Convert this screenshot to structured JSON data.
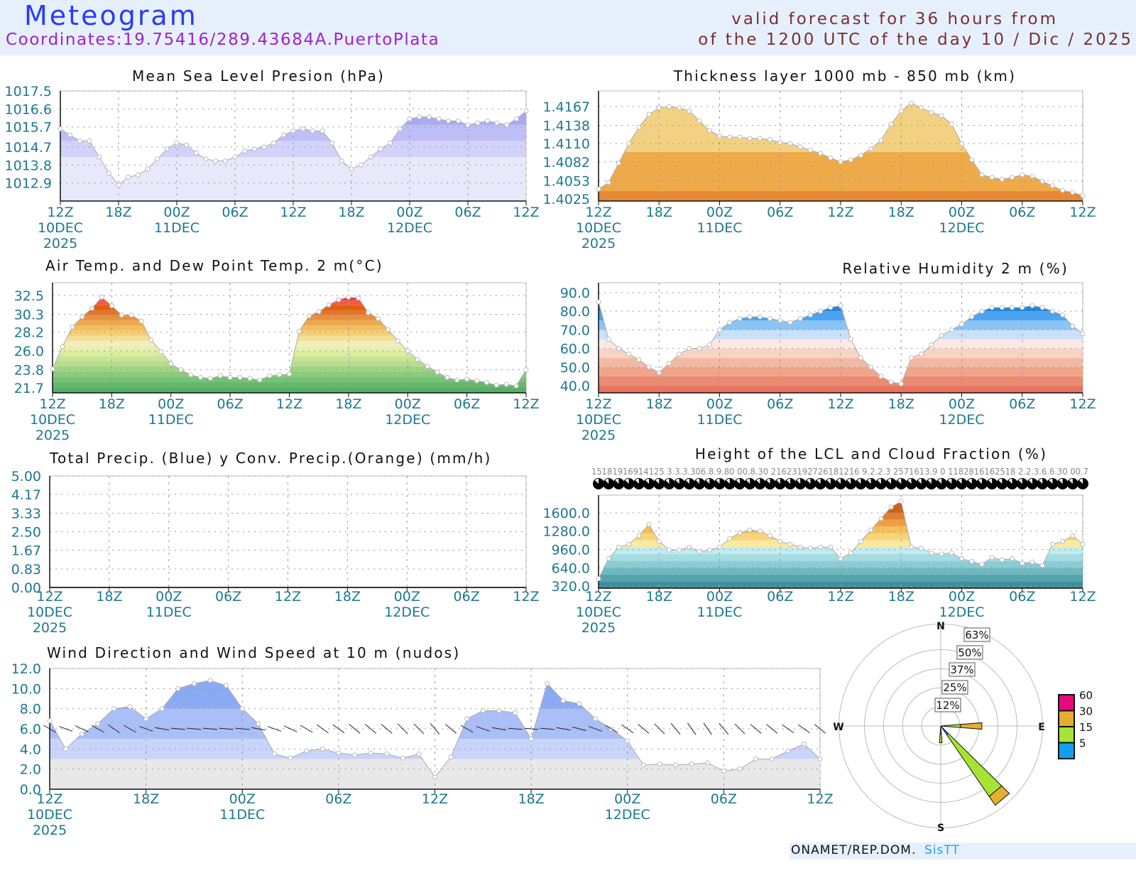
{
  "header": {
    "title": "Meteogram",
    "coordinates": "Coordinates:19.75416/289.43684A.PuertoPlata",
    "valid_line1": "valid forecast for 36 hours from",
    "valid_line2": "of the 1200 UTC of the day 10 / Dic / 2025"
  },
  "time_axis": {
    "hours": [
      "12Z",
      "18Z",
      "00Z",
      "06Z",
      "12Z",
      "18Z",
      "00Z",
      "06Z",
      "12Z"
    ],
    "dates": [
      "10DEC",
      "",
      "11DEC",
      "",
      "",
      "",
      "12DEC",
      "",
      ""
    ],
    "year": "2025"
  },
  "chart_data": [
    {
      "id": "mslp",
      "type": "area",
      "title": "Mean Sea Level Presion (hPa)",
      "ylabel": "hPa",
      "ylim": [
        1012.0,
        1017.5
      ],
      "yticks": [
        "1017.5",
        "1016.6",
        "1015.7",
        "1014.7",
        "1013.8",
        "1012.9"
      ],
      "x_hours_from_start": "0-48 hourly",
      "values": [
        1015.6,
        1015.3,
        1015.0,
        1015.0,
        1014.2,
        1013.4,
        1012.8,
        1013.2,
        1013.3,
        1013.6,
        1014.1,
        1014.6,
        1014.9,
        1014.8,
        1014.4,
        1014.1,
        1014.0,
        1014.0,
        1014.2,
        1014.5,
        1014.6,
        1014.7,
        1014.9,
        1015.3,
        1015.5,
        1015.6,
        1015.5,
        1015.5,
        1014.9,
        1014.0,
        1013.6,
        1013.8,
        1014.2,
        1014.6,
        1014.9,
        1015.6,
        1016.1,
        1016.2,
        1016.2,
        1016.1,
        1016.0,
        1016.0,
        1015.8,
        1015.9,
        1016.0,
        1015.9,
        1015.8,
        1016.1,
        1016.5
      ],
      "bands": [
        1014.2,
        1015.0,
        1015.8
      ],
      "colors": [
        "#e8e8fb",
        "#d2d2fa",
        "#bfbff7",
        "#aaaaf2"
      ]
    },
    {
      "id": "thickness",
      "type": "area",
      "title": "Thickness layer 1000 mb - 850 mb (km)",
      "ylabel": "km",
      "ylim": [
        1.40217,
        1.4191
      ],
      "yticks": [
        "1.4167",
        "1.4138",
        "1.4110",
        "1.4082",
        "1.4053",
        "1.4025"
      ],
      "values": [
        1.404,
        1.405,
        1.408,
        1.411,
        1.4135,
        1.4155,
        1.4165,
        1.4167,
        1.4165,
        1.416,
        1.4145,
        1.413,
        1.4122,
        1.412,
        1.412,
        1.4118,
        1.4118,
        1.4116,
        1.4112,
        1.411,
        1.4105,
        1.41,
        1.4095,
        1.4088,
        1.4082,
        1.4085,
        1.4092,
        1.4102,
        1.4115,
        1.414,
        1.416,
        1.4172,
        1.4165,
        1.4158,
        1.4153,
        1.414,
        1.411,
        1.4085,
        1.4062,
        1.4058,
        1.4055,
        1.4058,
        1.4062,
        1.406,
        1.4052,
        1.4045,
        1.4038,
        1.4035,
        1.403
      ],
      "bands": [
        1.4037,
        1.4097
      ],
      "colors": [
        "#e88a35",
        "#eeaa48",
        "#f3d182"
      ]
    },
    {
      "id": "temperature",
      "type": "area",
      "title": "Air Temp. and Dew Point Temp. 2 m(°C)",
      "ylabel": "°C",
      "ylim": [
        21.1,
        34.0
      ],
      "yticks": [
        "32.5",
        "30.3",
        "28.2",
        "26.0",
        "23.8",
        "21.7"
      ],
      "values": [
        23.9,
        26.5,
        28.8,
        30.0,
        31.0,
        32.3,
        31.3,
        30.2,
        30.2,
        29.5,
        27.3,
        25.9,
        24.5,
        23.8,
        23.2,
        22.9,
        22.8,
        23.1,
        22.9,
        22.9,
        22.8,
        22.6,
        23.1,
        23.2,
        23.3,
        28.3,
        30.1,
        30.6,
        31.4,
        32.0,
        32.3,
        32.2,
        30.5,
        29.8,
        28.5,
        27.2,
        26.0,
        25.0,
        24.2,
        23.5,
        22.9,
        22.6,
        22.7,
        22.5,
        22.3,
        22.0,
        22.1,
        21.9,
        23.8
      ],
      "bands": [
        21.8,
        22.4,
        23.0,
        23.6,
        24.2,
        24.8,
        25.4,
        26.0,
        26.6,
        27.2,
        27.8,
        28.4,
        29.0,
        29.6,
        30.2,
        30.8,
        31.4,
        32.0,
        32.6
      ],
      "colors": [
        "#55b068",
        "#64b96c",
        "#76c274",
        "#8acb7c",
        "#9fd485",
        "#b4dd8d",
        "#c7e594",
        "#d9eca0",
        "#e8efb0",
        "#f2ecbe",
        "#f3df92",
        "#f4cf72",
        "#f2bd5e",
        "#eda74f",
        "#e88f3f",
        "#e47427",
        "#e06010",
        "#f55a40",
        "#f0206a",
        "#a00030"
      ]
    },
    {
      "id": "humidity",
      "type": "area",
      "title": "Relative Humidity 2 m (%)",
      "ylabel": "%",
      "ylim": [
        36.2,
        95.3
      ],
      "yticks": [
        "90.0",
        "80.0",
        "70.0",
        "60.0",
        "50.0",
        "40.0"
      ],
      "values": [
        85,
        65,
        60,
        57,
        54,
        50,
        47,
        52,
        57,
        60,
        60,
        62,
        70,
        74,
        76,
        77,
        77,
        76,
        75,
        74,
        76,
        78,
        80,
        82,
        83,
        65,
        55,
        50,
        45,
        42,
        41,
        55,
        57,
        62,
        67,
        70,
        73,
        77,
        80,
        82,
        82,
        82,
        82,
        83,
        82,
        80,
        78,
        72,
        68
      ],
      "bands": [
        40,
        45,
        50,
        55,
        60,
        65,
        70,
        75,
        80,
        85
      ],
      "colors": [
        "#e8735e",
        "#eb8b72",
        "#f0a48a",
        "#f3baa3",
        "#f7d3c6",
        "#fbe8e3",
        "#c8e0fa",
        "#8cc4f5",
        "#4aa4ef",
        "#1c86e4",
        "#106fcf"
      ]
    },
    {
      "id": "precip",
      "type": "line",
      "title": "Total Precip. (Blue) y Conv. Precip.(Orange) (mm/h)",
      "ylabel": "mm/h",
      "ylim": [
        0,
        5
      ],
      "yticks": [
        "5.00",
        "4.17",
        "3.33",
        "2.50",
        "1.67",
        "0.83",
        "0.00"
      ],
      "series": [
        {
          "name": "Total Precip.",
          "color": "#1060e0",
          "values": [
            0,
            0,
            0,
            0,
            0,
            0,
            0,
            0,
            0,
            0,
            0,
            0,
            0,
            0,
            0,
            0,
            0,
            0,
            0,
            0,
            0,
            0,
            0,
            0,
            0,
            0,
            0,
            0,
            0,
            0,
            0,
            0,
            0,
            0,
            0,
            0,
            0,
            0,
            0,
            0,
            0,
            0,
            0,
            0,
            0,
            0,
            0,
            0,
            0
          ]
        },
        {
          "name": "Conv. Precip.",
          "color": "#e09020",
          "values": [
            0,
            0,
            0,
            0,
            0,
            0,
            0,
            0,
            0,
            0,
            0,
            0,
            0,
            0,
            0,
            0,
            0,
            0,
            0,
            0,
            0,
            0,
            0,
            0,
            0,
            0,
            0,
            0,
            0,
            0,
            0,
            0,
            0,
            0,
            0,
            0,
            0,
            0,
            0,
            0,
            0,
            0,
            0,
            0,
            0,
            0,
            0,
            0,
            0
          ]
        }
      ]
    },
    {
      "id": "lcl",
      "type": "area",
      "title": "Height of the LCL and Cloud Fraction (%)",
      "ylabel": "m",
      "ylim": [
        283,
        1910
      ],
      "yticks": [
        "1600.0",
        "1280.0",
        "960.0",
        "640.0",
        "320.0"
      ],
      "values": [
        450,
        800,
        1000,
        1050,
        1200,
        1400,
        1100,
        950,
        950,
        1000,
        920,
        950,
        1000,
        1150,
        1250,
        1300,
        1280,
        1200,
        1100,
        1050,
        1000,
        980,
        1000,
        1000,
        800,
        900,
        1100,
        1300,
        1500,
        1700,
        1800,
        1000,
        980,
        900,
        880,
        900,
        800,
        750,
        700,
        820,
        780,
        800,
        720,
        740,
        680,
        1050,
        1100,
        1200,
        1050
      ],
      "bands": [
        400,
        520,
        640,
        760,
        880,
        1000,
        1120,
        1240,
        1360,
        1480,
        1600
      ],
      "colors": [
        "#3e8f9a",
        "#55a3ad",
        "#6fb8c0",
        "#8accd3",
        "#a5dde2",
        "#c0ecef",
        "#fbe9a0",
        "#f8d57a",
        "#f5c05a",
        "#eea040",
        "#e28030",
        "#c9621c"
      ],
      "cloud_fraction_labels": "15181916914125 3.3.3.306.8.9.80 00.8.30 21623192726181216 9.2.2.3 2571613.9 0 1182816162518 2.2.3.6.6.30 00.7"
    },
    {
      "id": "wind",
      "type": "area",
      "title": "Wind Direction and Wind Speed at 10 m (nudos)",
      "ylabel": "nudos",
      "ylim": [
        0,
        12
      ],
      "yticks": [
        "12.0",
        "10.0",
        "8.0",
        "6.0",
        "4.0",
        "2.0",
        "0.0"
      ],
      "values": [
        6.8,
        4.0,
        5.5,
        6.5,
        8.0,
        8.2,
        7.0,
        8.0,
        10.0,
        10.5,
        10.8,
        10.3,
        8.0,
        6.5,
        3.5,
        3.1,
        3.8,
        4.0,
        3.6,
        3.4,
        3.6,
        3.5,
        3.1,
        3.5,
        1.2,
        3.2,
        7.0,
        7.8,
        7.8,
        7.6,
        5.0,
        10.5,
        8.8,
        8.5,
        7.0,
        6.0,
        4.8,
        2.4,
        2.5,
        2.4,
        2.5,
        2.6,
        1.8,
        2.0,
        3.0,
        3.0,
        3.8,
        4.5,
        3.0
      ],
      "direction_deg": [
        120,
        110,
        115,
        120,
        125,
        120,
        110,
        100,
        95,
        95,
        95,
        95,
        95,
        100,
        110,
        115,
        120,
        125,
        125,
        130,
        130,
        130,
        135,
        135,
        140,
        130,
        120,
        110,
        100,
        95,
        95,
        95,
        100,
        105,
        110,
        120,
        125,
        130,
        135,
        140,
        145,
        145,
        140,
        135,
        130,
        130,
        125,
        125,
        130
      ],
      "bands": [
        3,
        5,
        8
      ],
      "colors": [
        "#e8e8e8",
        "#c8d4fa",
        "#aabff8",
        "#8aaaf4"
      ]
    },
    {
      "id": "wind_rose",
      "type": "pie",
      "cardinals": [
        "N",
        "E",
        "S",
        "W"
      ],
      "ring_labels": [
        "12%",
        "25%",
        "37%",
        "50%",
        "63%"
      ],
      "ring_values": [
        12.5,
        25,
        37.5,
        50,
        63
      ],
      "petals": [
        {
          "dir_deg": 90,
          "segments": [
            {
              "speed": "5-15",
              "pct": 13
            },
            {
              "speed": "15-30",
              "pct": 14
            }
          ]
        },
        {
          "dir_deg": 140,
          "segments": [
            {
              "speed": "0-5",
              "pct": 7
            },
            {
              "speed": "5-15",
              "pct": 49
            },
            {
              "speed": "15-30",
              "pct": 7
            }
          ]
        },
        {
          "dir_deg": 180,
          "segments": [
            {
              "speed": "0-5",
              "pct": 5
            },
            {
              "speed": "5-15",
              "pct": 6
            }
          ]
        }
      ],
      "legend": [
        {
          "label": "60",
          "color": "#e8087a"
        },
        {
          "label": "30",
          "color": "#e5ae30"
        },
        {
          "label": "15",
          "color": "#a6e335"
        },
        {
          "label": "5",
          "color": "#10a0f0"
        }
      ]
    }
  ],
  "footer": {
    "org": "ONAMET/REP.DOM.",
    "brand": "SisTT"
  }
}
